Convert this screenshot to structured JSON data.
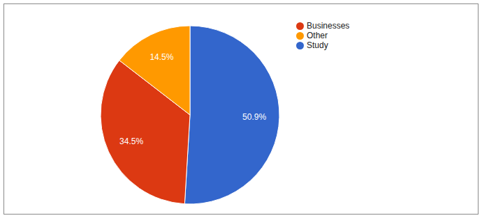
{
  "chart_data": {
    "type": "pie",
    "categories": [
      "Study",
      "Businesses",
      "Other"
    ],
    "values": [
      50.9,
      34.5,
      14.5
    ],
    "value_labels": [
      "50.9%",
      "34.5%",
      "14.5%"
    ],
    "colors": [
      "#3366cc",
      "#dc3912",
      "#ff9900"
    ],
    "data_labels": true,
    "legend": "top-right"
  }
}
